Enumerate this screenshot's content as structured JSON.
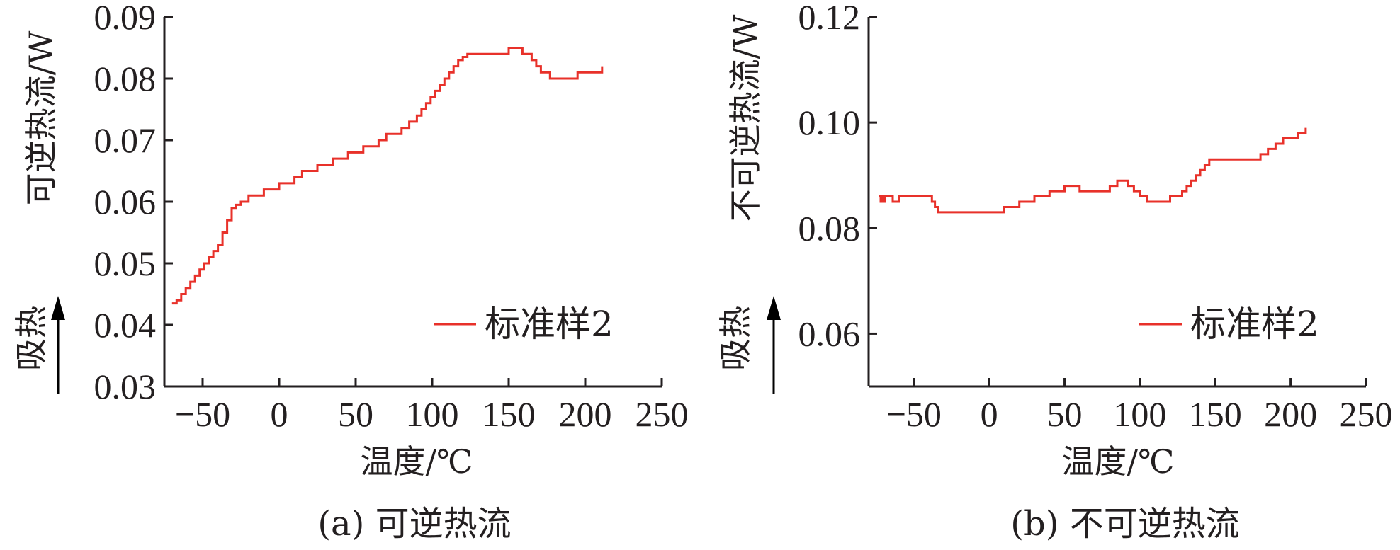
{
  "chart_data": [
    {
      "type": "line",
      "caption": "(a) 可逆热流",
      "xlabel": "温度/℃",
      "ylabel": "可逆热流/W",
      "endo_label": "吸热",
      "xlim": [
        -75,
        250
      ],
      "ylim": [
        0.03,
        0.09
      ],
      "xticks": [
        -50,
        0,
        50,
        100,
        150,
        200,
        250
      ],
      "xtick_labels": [
        "−50",
        "0",
        "50",
        "100",
        "150",
        "200",
        "250"
      ],
      "yticks": [
        0.03,
        0.04,
        0.05,
        0.06,
        0.07,
        0.08,
        0.09
      ],
      "ytick_labels": [
        "0.03",
        "0.04",
        "0.05",
        "0.06",
        "0.07",
        "0.08",
        "0.09"
      ],
      "grid": false,
      "legend_position": "bottom-right",
      "series": [
        {
          "name": "标准样2",
          "color": "#e8312a",
          "x": [
            -70,
            -67,
            -64,
            -61,
            -58,
            -55,
            -52,
            -49,
            -46,
            -43,
            -40,
            -37,
            -34,
            -31,
            -28,
            -25,
            -20,
            -15,
            -10,
            -5,
            0,
            5,
            10,
            15,
            20,
            25,
            30,
            35,
            40,
            45,
            50,
            55,
            60,
            65,
            70,
            75,
            80,
            85,
            90,
            93,
            96,
            99,
            102,
            105,
            108,
            111,
            114,
            117,
            120,
            123,
            126,
            130,
            135,
            140,
            145,
            150,
            153,
            156,
            159,
            162,
            165,
            168,
            171,
            174,
            177,
            180,
            185,
            190,
            195,
            200,
            205,
            209,
            211
          ],
          "y": [
            0.0435,
            0.044,
            0.045,
            0.046,
            0.047,
            0.048,
            0.049,
            0.05,
            0.051,
            0.052,
            0.053,
            0.055,
            0.057,
            0.059,
            0.0595,
            0.06,
            0.061,
            0.061,
            0.062,
            0.062,
            0.063,
            0.063,
            0.064,
            0.065,
            0.065,
            0.066,
            0.066,
            0.067,
            0.067,
            0.068,
            0.068,
            0.069,
            0.069,
            0.07,
            0.071,
            0.071,
            0.072,
            0.073,
            0.074,
            0.075,
            0.076,
            0.077,
            0.078,
            0.079,
            0.08,
            0.081,
            0.082,
            0.083,
            0.0835,
            0.084,
            0.084,
            0.084,
            0.084,
            0.084,
            0.084,
            0.085,
            0.085,
            0.085,
            0.084,
            0.084,
            0.083,
            0.082,
            0.081,
            0.081,
            0.08,
            0.08,
            0.08,
            0.08,
            0.081,
            0.081,
            0.081,
            0.081,
            0.082
          ]
        }
      ]
    },
    {
      "type": "line",
      "caption": "(b) 不可逆热流",
      "xlabel": "温度/℃",
      "ylabel": "不可逆热流/W",
      "endo_label": "吸热",
      "xlim": [
        -80,
        250
      ],
      "ylim": [
        0.05,
        0.12
      ],
      "xticks": [
        -50,
        0,
        50,
        100,
        150,
        200,
        250
      ],
      "xtick_labels": [
        "−50",
        "0",
        "50",
        "100",
        "150",
        "200",
        "250"
      ],
      "yticks": [
        0.06,
        0.08,
        0.1,
        0.12
      ],
      "ytick_labels": [
        "0.06",
        "0.08",
        "0.10",
        "0.12"
      ],
      "grid": false,
      "legend_position": "bottom-right",
      "series": [
        {
          "name": "标准样2",
          "color": "#e8312a",
          "x": [
            -73,
            -72,
            -71,
            -70,
            -69,
            -68,
            -66,
            -64,
            -62,
            -60,
            -55,
            -50,
            -45,
            -40,
            -38,
            -36,
            -34,
            -32,
            -30,
            -20,
            -10,
            0,
            5,
            10,
            15,
            20,
            25,
            30,
            35,
            40,
            45,
            50,
            55,
            60,
            65,
            70,
            75,
            80,
            85,
            88,
            92,
            96,
            100,
            105,
            110,
            115,
            120,
            125,
            128,
            131,
            134,
            137,
            140,
            143,
            146,
            150,
            160,
            170,
            175,
            180,
            185,
            190,
            195,
            200,
            205,
            210
          ],
          "y": [
            0.086,
            0.085,
            0.086,
            0.085,
            0.086,
            0.086,
            0.086,
            0.085,
            0.085,
            0.086,
            0.086,
            0.086,
            0.086,
            0.086,
            0.085,
            0.084,
            0.083,
            0.083,
            0.083,
            0.083,
            0.083,
            0.083,
            0.083,
            0.084,
            0.084,
            0.085,
            0.085,
            0.086,
            0.086,
            0.087,
            0.087,
            0.088,
            0.088,
            0.087,
            0.087,
            0.087,
            0.087,
            0.088,
            0.089,
            0.089,
            0.088,
            0.087,
            0.086,
            0.085,
            0.085,
            0.085,
            0.086,
            0.086,
            0.087,
            0.088,
            0.089,
            0.09,
            0.091,
            0.092,
            0.093,
            0.093,
            0.093,
            0.093,
            0.093,
            0.094,
            0.095,
            0.096,
            0.097,
            0.097,
            0.098,
            0.099
          ]
        }
      ]
    }
  ]
}
